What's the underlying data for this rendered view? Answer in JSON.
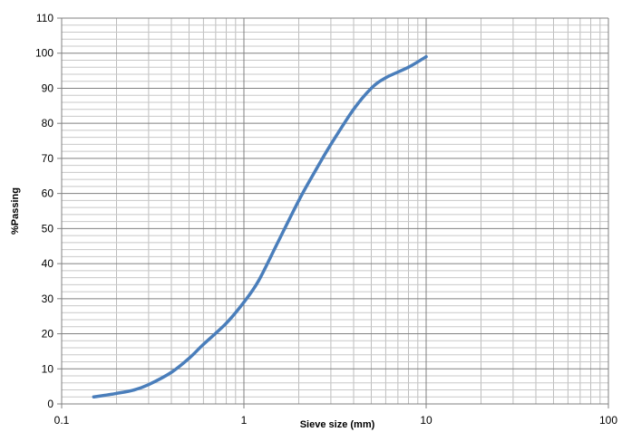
{
  "chart_data": {
    "type": "line",
    "title": "",
    "xlabel": "Sieve size (mm)",
    "ylabel": "%Passing",
    "x_scale": "log",
    "xlim": [
      0.1,
      100
    ],
    "ylim": [
      0,
      110
    ],
    "x_ticks": [
      0.1,
      1,
      10,
      100
    ],
    "x_tick_labels": [
      "0.1",
      "1",
      "10",
      "100"
    ],
    "y_ticks": [
      0,
      10,
      20,
      30,
      40,
      50,
      60,
      70,
      80,
      90,
      100,
      110
    ],
    "y_tick_labels": [
      "0",
      "10",
      "20",
      "30",
      "40",
      "50",
      "60",
      "70",
      "80",
      "90",
      "100",
      "110"
    ],
    "grid": true,
    "legend": "none",
    "series": [
      {
        "color": "#4a7ebb",
        "x": [
          0.15,
          0.2,
          0.25,
          0.3,
          0.4,
          0.5,
          0.6,
          0.8,
          1,
          1.2,
          1.5,
          2,
          2.5,
          3,
          4,
          5,
          6,
          8,
          10
        ],
        "y": [
          2,
          3,
          4,
          5.5,
          9,
          13,
          17,
          23,
          29,
          35,
          45,
          58,
          67,
          74,
          84,
          90,
          93,
          96,
          99
        ]
      }
    ]
  }
}
